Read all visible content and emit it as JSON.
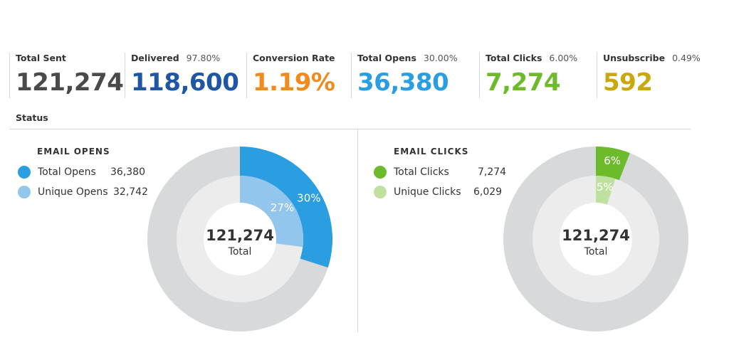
{
  "metrics": [
    {
      "label": "Total Sent",
      "pct": "",
      "value": "121,274",
      "color": "#4a4a4a"
    },
    {
      "label": "Delivered",
      "pct": "97.80%",
      "value": "118,600",
      "color": "#1f57a4"
    },
    {
      "label": "Conversion Rate",
      "pct": "",
      "value": "1.19%",
      "color": "#f08a1c"
    },
    {
      "label": "Total Opens",
      "pct": "30.00%",
      "value": "36,380",
      "color": "#2a9ee0"
    },
    {
      "label": "Total Clicks",
      "pct": "6.00%",
      "value": "7,274",
      "color": "#6dba2b"
    },
    {
      "label": "Unsubscribe",
      "pct": "0.49%",
      "value": "592",
      "color": "#c9a80c"
    }
  ],
  "status": {
    "title": "Status"
  },
  "chart_data": [
    {
      "type": "pie",
      "title": "EMAIL OPENS",
      "center_value": "121,274",
      "center_label": "Total",
      "track_color": "#d7d9da",
      "inner_track_color": "#ececec",
      "series": [
        {
          "name": "Total Opens",
          "value": "36,380",
          "percent": 30,
          "percent_label": "30%",
          "color": "#2a9ee0",
          "ring": "outer"
        },
        {
          "name": "Unique Opens",
          "value": "32,742",
          "percent": 27,
          "percent_label": "27%",
          "color": "#93c6ec",
          "ring": "inner"
        }
      ]
    },
    {
      "type": "pie",
      "title": "EMAIL CLICKS",
      "center_value": "121,274",
      "center_label": "Total",
      "track_color": "#d7d9da",
      "inner_track_color": "#ececec",
      "series": [
        {
          "name": "Total Clicks",
          "value": "7,274",
          "percent": 6,
          "percent_label": "6%",
          "color": "#6dba2b",
          "ring": "outer"
        },
        {
          "name": "Unique Clicks",
          "value": "6,029",
          "percent": 5,
          "percent_label": "5%",
          "color": "#bfe09e",
          "ring": "inner"
        }
      ]
    }
  ]
}
